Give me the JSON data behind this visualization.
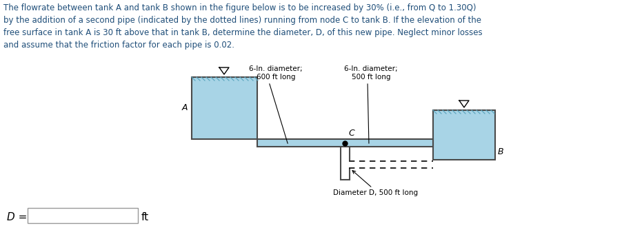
{
  "title_text": "The flowrate between tank A and tank B shown in the figure below is to be increased by 30% (i.e., from Q to 1.30Q)\nby the addition of a second pipe (indicated by the dotted lines) running from node C to tank B. If the elevation of the\nfree surface in tank A is 30 ft above that in tank B, determine the diameter, D, of this new pipe. Neglect minor losses\nand assume that the friction factor for each pipe is 0.02.",
  "title_color": "#1f4e79",
  "bg_color": "#ffffff",
  "water_color": "#a8d4e6",
  "tank_border_color": "#4a4a4a",
  "label_6in_1": "6-In. diameter;\n600 ft long",
  "label_6in_2": "6-In. diameter;\n500 ft long",
  "label_diam_d": "Diameter D, 500 ft long",
  "label_A": "A",
  "label_B": "B",
  "label_C": "C",
  "answer_label": "D =",
  "answer_unit": "ft"
}
